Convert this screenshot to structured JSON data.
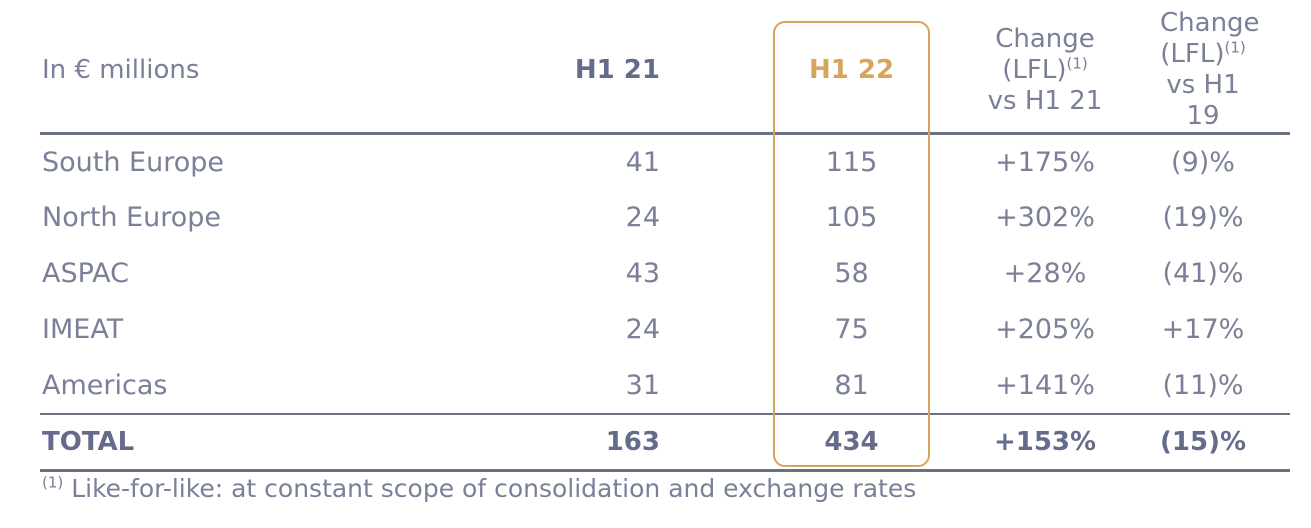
{
  "table": {
    "unit_label": "In € millions",
    "columns": {
      "h1_21": "H1 21",
      "h1_22": "H1 22",
      "chg_21": {
        "line1": "Change",
        "line2": "(LFL)",
        "sup": "(1)",
        "line3": "vs H1 21"
      },
      "chg_19": {
        "line1": "Change",
        "line2": "(LFL)",
        "sup": "(1)",
        "line3": "vs H1 19"
      }
    },
    "rows": [
      {
        "label": "South Europe",
        "h1_21": "41",
        "h1_22": "115",
        "chg_21": "+175%",
        "chg_19": "(9)%"
      },
      {
        "label": "North Europe",
        "h1_21": "24",
        "h1_22": "105",
        "chg_21": "+302%",
        "chg_19": "(19)%"
      },
      {
        "label": "ASPAC",
        "h1_21": "43",
        "h1_22": "58",
        "chg_21": "+28%",
        "chg_19": "(41)%"
      },
      {
        "label": "IMEAT",
        "h1_21": "24",
        "h1_22": "75",
        "chg_21": "+205%",
        "chg_19": "+17%"
      },
      {
        "label": "Americas",
        "h1_21": "31",
        "h1_22": "81",
        "chg_21": "+141%",
        "chg_19": "(11)%"
      }
    ],
    "total": {
      "label": "TOTAL",
      "h1_21": "163",
      "h1_22": "434",
      "chg_21": "+153%",
      "chg_19": "(15)%"
    }
  },
  "footnote": {
    "sup": "(1)",
    "text": " Like-for-like: at constant scope of consolidation and exchange rates"
  },
  "colors": {
    "accent_gold": "#D7A45C",
    "text": "#7A8098",
    "text_strong": "#656C8B",
    "rule": "#6A7183",
    "background": "#FFFFFF"
  }
}
